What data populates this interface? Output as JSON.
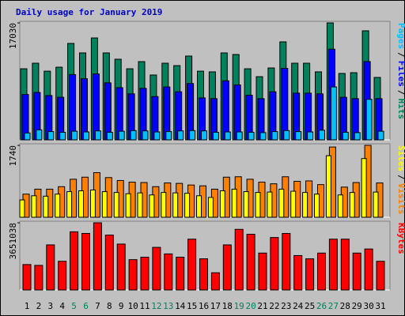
{
  "chart_data": [
    {
      "type": "bar",
      "title": "Daily usage for January 2019",
      "legend_separator": "/",
      "ylim": [
        0,
        17030
      ],
      "yticks": [
        17030
      ],
      "series": [
        {
          "name": "Hits",
          "color": "#00805c",
          "values": [
            10350,
            11160,
            10000,
            10580,
            14040,
            12660,
            14840,
            12660,
            11740,
            10350,
            11390,
            9440,
            11160,
            10810,
            12200,
            10000,
            9900,
            12660,
            12430,
            10350,
            9200,
            10470,
            14270,
            11160,
            11160,
            9900,
            17030,
            9670,
            9780,
            15880,
            9090
          ]
        },
        {
          "name": "Files",
          "color": "#0000ff",
          "values": [
            6600,
            6900,
            6450,
            6200,
            9500,
            8900,
            9600,
            8300,
            7600,
            6700,
            7500,
            6300,
            7700,
            7000,
            8200,
            6100,
            6000,
            8600,
            8000,
            6500,
            6000,
            7000,
            10400,
            6800,
            6800,
            6700,
            13200,
            6200,
            6000,
            11400,
            6000
          ]
        },
        {
          "name": "Pages",
          "color": "#00c0ff",
          "values": [
            1000,
            1450,
            1200,
            1100,
            1250,
            1150,
            1300,
            1100,
            1250,
            1350,
            1300,
            1150,
            1200,
            1300,
            1350,
            1300,
            1100,
            1150,
            1150,
            1100,
            1050,
            1200,
            1350,
            1200,
            1150,
            1400,
            7700,
            1100,
            1050,
            5900,
            1250
          ]
        }
      ]
    },
    {
      "type": "bar",
      "legend_separator": "/",
      "ylim": [
        0,
        1740
      ],
      "yticks": [
        1740
      ],
      "series": [
        {
          "name": "Visits",
          "color": "#ff8000",
          "values": [
            560,
            680,
            680,
            740,
            920,
            970,
            1080,
            960,
            890,
            850,
            840,
            740,
            830,
            820,
            780,
            760,
            680,
            970,
            980,
            920,
            850,
            810,
            980,
            870,
            880,
            790,
            1700,
            730,
            840,
            1740,
            830
          ]
        },
        {
          "name": "Sites",
          "color": "#ffff00",
          "values": [
            420,
            520,
            510,
            560,
            620,
            640,
            660,
            620,
            600,
            570,
            590,
            540,
            600,
            590,
            580,
            520,
            480,
            640,
            680,
            620,
            600,
            610,
            680,
            630,
            600,
            560,
            1490,
            540,
            600,
            1420,
            610
          ]
        }
      ]
    },
    {
      "type": "bar",
      "ylim": [
        0,
        3651038
      ],
      "yticks": [
        3651038
      ],
      "categories": [
        "1",
        "2",
        "3",
        "4",
        "5",
        "6",
        "7",
        "8",
        "9",
        "10",
        "11",
        "12",
        "13",
        "14",
        "15",
        "16",
        "17",
        "18",
        "19",
        "20",
        "21",
        "22",
        "23",
        "24",
        "25",
        "26",
        "27",
        "28",
        "29",
        "30",
        "31"
      ],
      "category_colors": [
        "#000000",
        "#000000",
        "#000000",
        "#000000",
        "#00805c",
        "#00805c",
        "#000000",
        "#000000",
        "#000000",
        "#000000",
        "#000000",
        "#00805c",
        "#00805c",
        "#000000",
        "#000000",
        "#000000",
        "#000000",
        "#000000",
        "#00805c",
        "#00805c",
        "#000000",
        "#000000",
        "#000000",
        "#000000",
        "#000000",
        "#00805c",
        "#00805c",
        "#000000",
        "#000000",
        "#000000",
        "#000000"
      ],
      "series": [
        {
          "name": "KBytes",
          "color": "#ff0000",
          "values": [
            1380000,
            1336000,
            2449000,
            1558000,
            3161000,
            3072000,
            3651038,
            2983000,
            2493000,
            1647000,
            1781000,
            2315000,
            1959000,
            1781000,
            2761000,
            1692000,
            935000,
            2449000,
            3295000,
            3028000,
            2004000,
            2850000,
            3072000,
            1870000,
            1692000,
            2004000,
            2761000,
            2761000,
            2004000,
            2226000,
            1558000
          ]
        }
      ]
    }
  ]
}
